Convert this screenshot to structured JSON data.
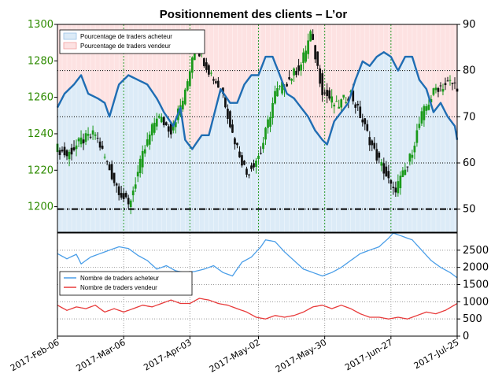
{
  "chart_data": [
    {
      "type": "candlestick",
      "title": "Positionnement des clients – L’or",
      "ylim_left": [
        1186,
        1300
      ],
      "ylim_right": [
        45,
        90
      ],
      "yticks_left": [
        1200,
        1220,
        1240,
        1260,
        1280,
        1300
      ],
      "yticks_right": [
        50,
        60,
        70,
        80,
        90
      ],
      "reference_line": 50,
      "legend": [
        "Pourcentage de traders acheteur",
        "Pourcentage de traders vendeur"
      ],
      "legend_placement": "top-left",
      "colors": {
        "price_up": "#1a9a1a",
        "price_down": "#111111",
        "ratio_line": "#1f6db3",
        "long_fill": "#dcebf7",
        "short_fill": "#fde2e2",
        "left_axis_text": "#2e8b00"
      },
      "grid": true,
      "price_anchors": [
        {
          "d": 0,
          "v": 1232
        },
        {
          "d": 4,
          "v": 1228
        },
        {
          "d": 10,
          "v": 1236
        },
        {
          "d": 16,
          "v": 1240
        },
        {
          "d": 24,
          "v": 1214
        },
        {
          "d": 30,
          "v": 1200
        },
        {
          "d": 36,
          "v": 1228
        },
        {
          "d": 42,
          "v": 1250
        },
        {
          "d": 48,
          "v": 1242
        },
        {
          "d": 54,
          "v": 1262
        },
        {
          "d": 58,
          "v": 1290
        },
        {
          "d": 64,
          "v": 1275
        },
        {
          "d": 70,
          "v": 1262
        },
        {
          "d": 74,
          "v": 1240
        },
        {
          "d": 80,
          "v": 1218
        },
        {
          "d": 86,
          "v": 1230
        },
        {
          "d": 92,
          "v": 1262
        },
        {
          "d": 98,
          "v": 1270
        },
        {
          "d": 103,
          "v": 1278
        },
        {
          "d": 107,
          "v": 1295
        },
        {
          "d": 112,
          "v": 1264
        },
        {
          "d": 118,
          "v": 1255
        },
        {
          "d": 124,
          "v": 1262
        },
        {
          "d": 128,
          "v": 1250
        },
        {
          "d": 134,
          "v": 1230
        },
        {
          "d": 138,
          "v": 1220
        },
        {
          "d": 142,
          "v": 1208
        },
        {
          "d": 148,
          "v": 1222
        },
        {
          "d": 154,
          "v": 1250
        },
        {
          "d": 160,
          "v": 1265
        },
        {
          "d": 166,
          "v": 1268
        },
        {
          "d": 169,
          "v": 1266
        }
      ],
      "ratio_anchors": [
        {
          "d": 0,
          "v": 72
        },
        {
          "d": 3,
          "v": 75
        },
        {
          "d": 7,
          "v": 77
        },
        {
          "d": 10,
          "v": 79
        },
        {
          "d": 13,
          "v": 75
        },
        {
          "d": 17,
          "v": 74
        },
        {
          "d": 20,
          "v": 73
        },
        {
          "d": 22,
          "v": 70
        },
        {
          "d": 26,
          "v": 77
        },
        {
          "d": 30,
          "v": 79
        },
        {
          "d": 34,
          "v": 78
        },
        {
          "d": 38,
          "v": 77
        },
        {
          "d": 42,
          "v": 74
        },
        {
          "d": 45,
          "v": 71
        },
        {
          "d": 49,
          "v": 68
        },
        {
          "d": 52,
          "v": 72
        },
        {
          "d": 54,
          "v": 65
        },
        {
          "d": 57,
          "v": 63
        },
        {
          "d": 61,
          "v": 66
        },
        {
          "d": 64,
          "v": 66
        },
        {
          "d": 66,
          "v": 70
        },
        {
          "d": 69,
          "v": 76
        },
        {
          "d": 73,
          "v": 73
        },
        {
          "d": 76,
          "v": 73
        },
        {
          "d": 79,
          "v": 77
        },
        {
          "d": 82,
          "v": 79
        },
        {
          "d": 85,
          "v": 79
        },
        {
          "d": 88,
          "v": 83
        },
        {
          "d": 91,
          "v": 83
        },
        {
          "d": 94,
          "v": 79
        },
        {
          "d": 97,
          "v": 75
        },
        {
          "d": 100,
          "v": 74
        },
        {
          "d": 103,
          "v": 72
        },
        {
          "d": 106,
          "v": 70
        },
        {
          "d": 109,
          "v": 67
        },
        {
          "d": 112,
          "v": 65
        },
        {
          "d": 114,
          "v": 64
        },
        {
          "d": 117,
          "v": 69
        },
        {
          "d": 120,
          "v": 71
        },
        {
          "d": 123,
          "v": 73
        },
        {
          "d": 126,
          "v": 78
        },
        {
          "d": 129,
          "v": 82
        },
        {
          "d": 132,
          "v": 81
        },
        {
          "d": 135,
          "v": 83
        },
        {
          "d": 138,
          "v": 84
        },
        {
          "d": 141,
          "v": 83
        },
        {
          "d": 144,
          "v": 80
        },
        {
          "d": 147,
          "v": 83
        },
        {
          "d": 150,
          "v": 83
        },
        {
          "d": 153,
          "v": 78
        },
        {
          "d": 156,
          "v": 76
        },
        {
          "d": 159,
          "v": 71
        },
        {
          "d": 162,
          "v": 73
        },
        {
          "d": 165,
          "v": 70
        },
        {
          "d": 168,
          "v": 68
        },
        {
          "d": 169,
          "v": 65
        }
      ]
    },
    {
      "type": "line",
      "ylim": [
        0,
        3000
      ],
      "yticks": [
        0,
        500,
        1000,
        1500,
        2000,
        2500
      ],
      "xtick_labels": [
        "2017-Feb-06",
        "2017-Mar-06",
        "2017-Apr-03",
        "2017-May-02",
        "2017-May-30",
        "2017-Jun-27",
        "2017-Jul-25"
      ],
      "xtick_days": [
        0,
        28,
        56,
        85,
        113,
        141,
        169
      ],
      "grid": true,
      "legend_placement": "center-left",
      "series": [
        {
          "name": "Nombre de traders acheteur",
          "color": "#4a9ee8",
          "anchors": [
            {
              "d": 0,
              "v": 2400
            },
            {
              "d": 4,
              "v": 2250
            },
            {
              "d": 8,
              "v": 2380
            },
            {
              "d": 10,
              "v": 2100
            },
            {
              "d": 14,
              "v": 2300
            },
            {
              "d": 18,
              "v": 2400
            },
            {
              "d": 22,
              "v": 2500
            },
            {
              "d": 26,
              "v": 2600
            },
            {
              "d": 30,
              "v": 2550
            },
            {
              "d": 34,
              "v": 2350
            },
            {
              "d": 38,
              "v": 2200
            },
            {
              "d": 42,
              "v": 1950
            },
            {
              "d": 46,
              "v": 2050
            },
            {
              "d": 50,
              "v": 1900
            },
            {
              "d": 54,
              "v": 1850
            },
            {
              "d": 58,
              "v": 1880
            },
            {
              "d": 62,
              "v": 1950
            },
            {
              "d": 66,
              "v": 2050
            },
            {
              "d": 70,
              "v": 1850
            },
            {
              "d": 74,
              "v": 1750
            },
            {
              "d": 78,
              "v": 2150
            },
            {
              "d": 82,
              "v": 2300
            },
            {
              "d": 86,
              "v": 2600
            },
            {
              "d": 88,
              "v": 2800
            },
            {
              "d": 92,
              "v": 2750
            },
            {
              "d": 96,
              "v": 2450
            },
            {
              "d": 100,
              "v": 2200
            },
            {
              "d": 104,
              "v": 1950
            },
            {
              "d": 108,
              "v": 1850
            },
            {
              "d": 112,
              "v": 1750
            },
            {
              "d": 116,
              "v": 1850
            },
            {
              "d": 120,
              "v": 2000
            },
            {
              "d": 124,
              "v": 2200
            },
            {
              "d": 128,
              "v": 2400
            },
            {
              "d": 132,
              "v": 2500
            },
            {
              "d": 136,
              "v": 2600
            },
            {
              "d": 140,
              "v": 2850
            },
            {
              "d": 142,
              "v": 3000
            },
            {
              "d": 146,
              "v": 2900
            },
            {
              "d": 150,
              "v": 2800
            },
            {
              "d": 154,
              "v": 2500
            },
            {
              "d": 158,
              "v": 2200
            },
            {
              "d": 162,
              "v": 2000
            },
            {
              "d": 166,
              "v": 1850
            },
            {
              "d": 169,
              "v": 1700
            }
          ]
        },
        {
          "name": "Nombre de traders vendeur",
          "color": "#e83a3a",
          "anchors": [
            {
              "d": 0,
              "v": 900
            },
            {
              "d": 4,
              "v": 750
            },
            {
              "d": 8,
              "v": 850
            },
            {
              "d": 12,
              "v": 800
            },
            {
              "d": 16,
              "v": 900
            },
            {
              "d": 20,
              "v": 700
            },
            {
              "d": 24,
              "v": 800
            },
            {
              "d": 28,
              "v": 700
            },
            {
              "d": 32,
              "v": 800
            },
            {
              "d": 36,
              "v": 900
            },
            {
              "d": 40,
              "v": 850
            },
            {
              "d": 44,
              "v": 950
            },
            {
              "d": 48,
              "v": 1050
            },
            {
              "d": 52,
              "v": 950
            },
            {
              "d": 56,
              "v": 950
            },
            {
              "d": 60,
              "v": 1100
            },
            {
              "d": 64,
              "v": 1050
            },
            {
              "d": 68,
              "v": 950
            },
            {
              "d": 72,
              "v": 900
            },
            {
              "d": 76,
              "v": 800
            },
            {
              "d": 80,
              "v": 700
            },
            {
              "d": 84,
              "v": 550
            },
            {
              "d": 88,
              "v": 500
            },
            {
              "d": 92,
              "v": 600
            },
            {
              "d": 96,
              "v": 550
            },
            {
              "d": 100,
              "v": 600
            },
            {
              "d": 104,
              "v": 700
            },
            {
              "d": 108,
              "v": 850
            },
            {
              "d": 112,
              "v": 900
            },
            {
              "d": 116,
              "v": 800
            },
            {
              "d": 120,
              "v": 900
            },
            {
              "d": 124,
              "v": 800
            },
            {
              "d": 128,
              "v": 650
            },
            {
              "d": 132,
              "v": 550
            },
            {
              "d": 136,
              "v": 550
            },
            {
              "d": 140,
              "v": 500
            },
            {
              "d": 144,
              "v": 550
            },
            {
              "d": 148,
              "v": 500
            },
            {
              "d": 152,
              "v": 600
            },
            {
              "d": 156,
              "v": 700
            },
            {
              "d": 160,
              "v": 650
            },
            {
              "d": 164,
              "v": 750
            },
            {
              "d": 169,
              "v": 950
            }
          ]
        }
      ]
    }
  ]
}
